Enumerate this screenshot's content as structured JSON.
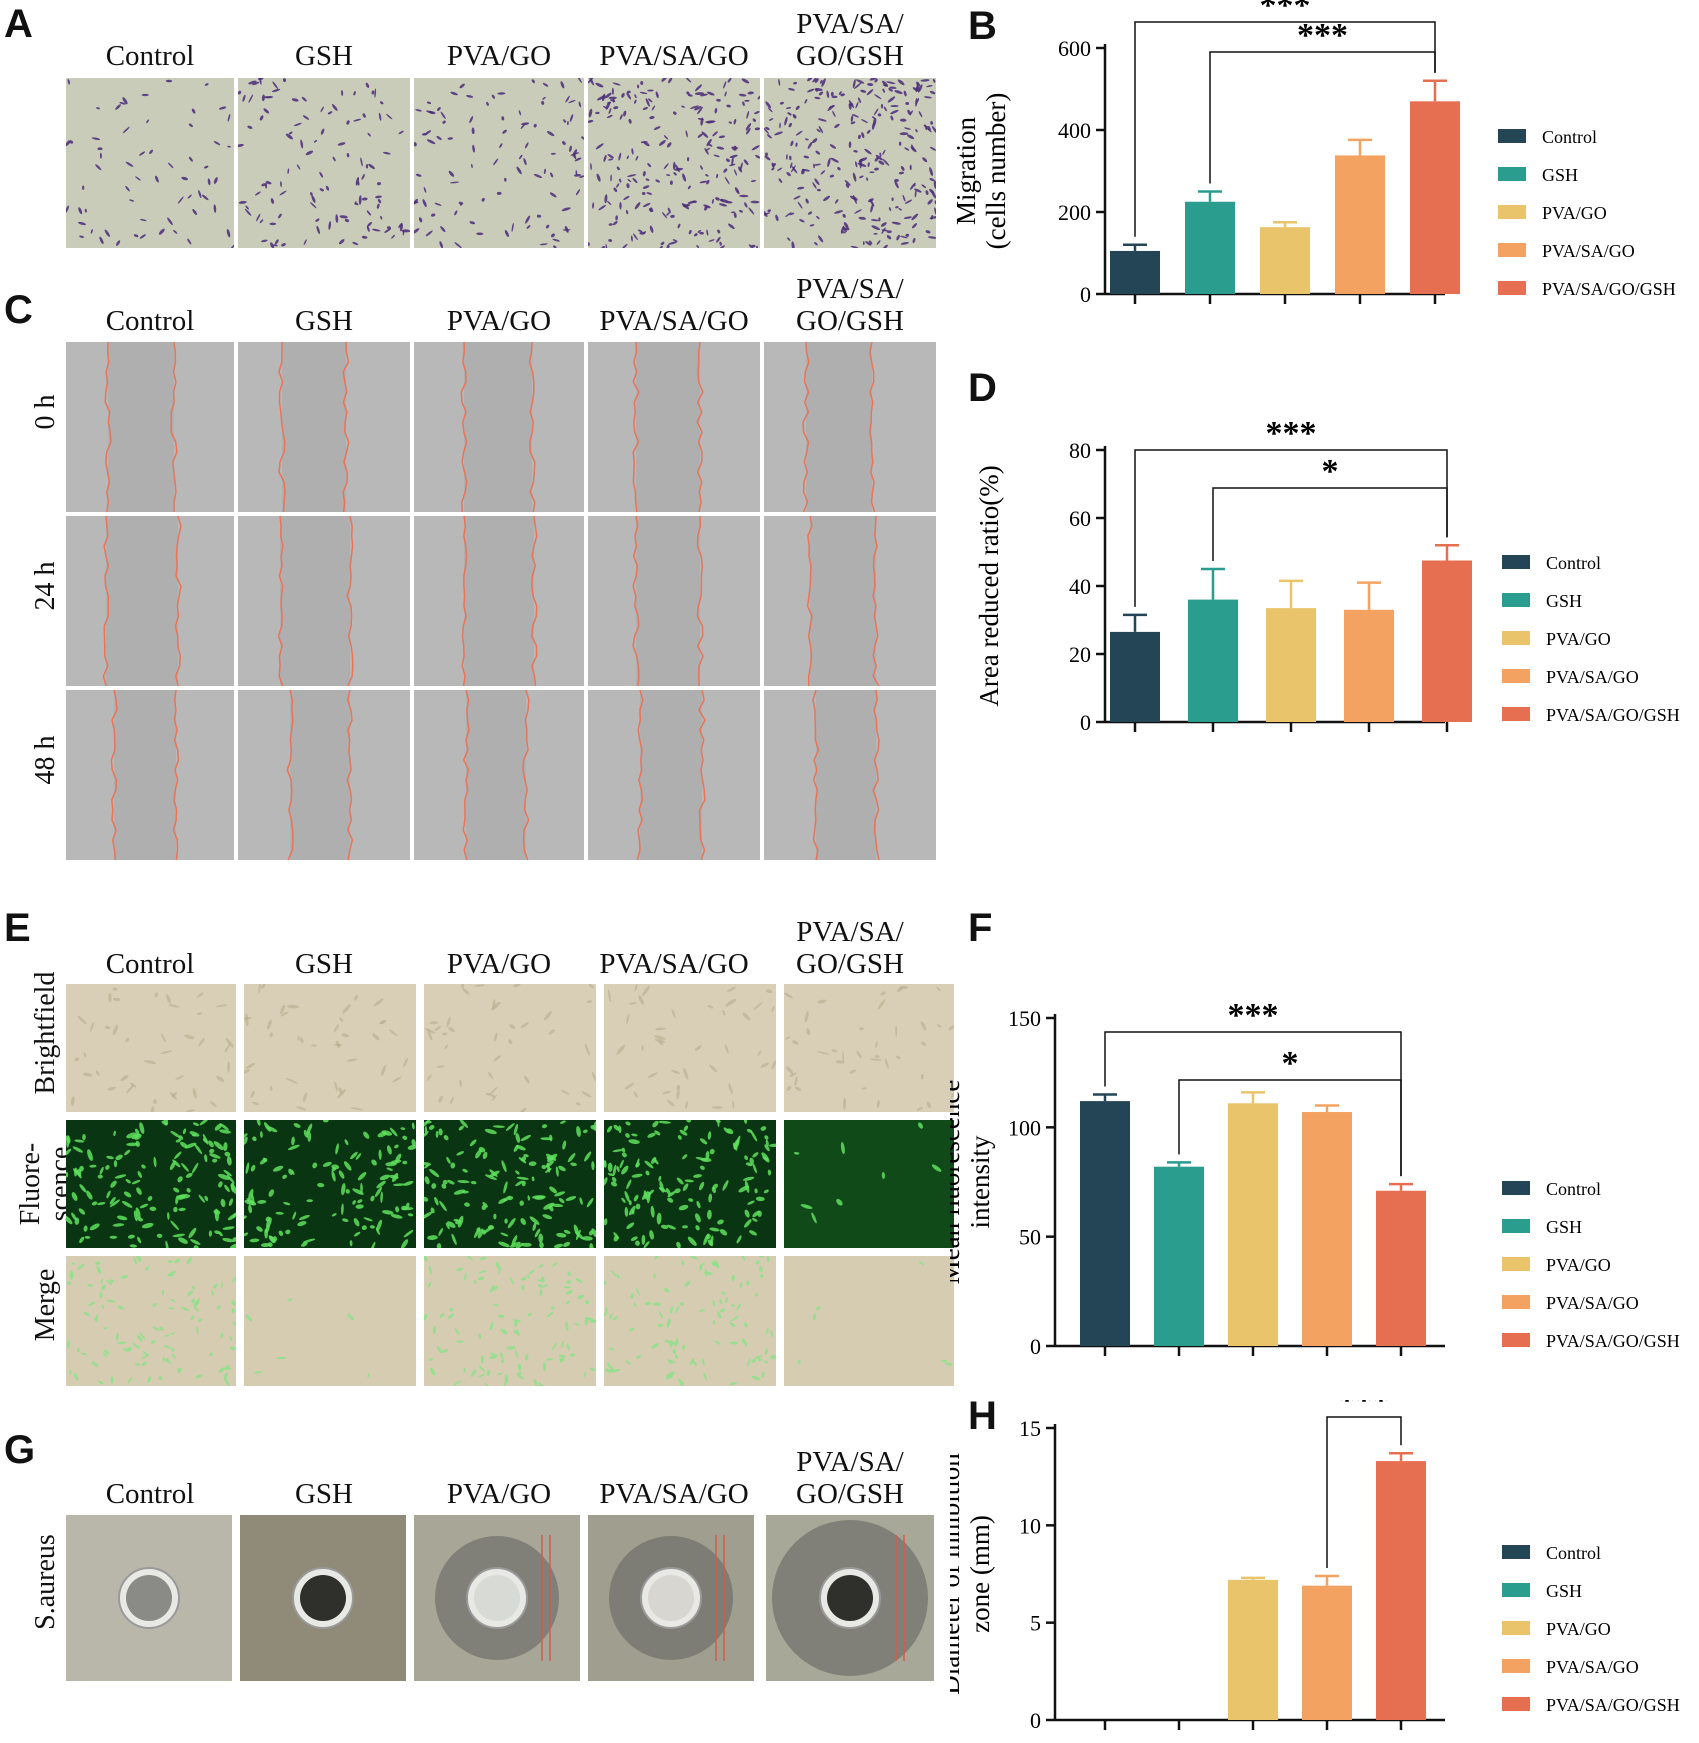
{
  "panel_letters": {
    "A": "A",
    "B": "B",
    "C": "C",
    "D": "D",
    "E": "E",
    "F": "F",
    "G": "G",
    "H": "H"
  },
  "groups": [
    "Control",
    "GSH",
    "PVA/GO",
    "PVA/SA/GO",
    "PVA/SA/\nGO/GSH"
  ],
  "group_colors": [
    "#244556",
    "#2a9d8f",
    "#e9c46a",
    "#f4a261",
    "#e76f51"
  ],
  "scratch_rows": [
    "0 h",
    "24 h",
    "48 h"
  ],
  "fluor_rows": [
    "Brightfield",
    "Fluore-\nscence",
    "Merge"
  ],
  "bacteria_row": "S.aureus",
  "chart_data": [
    {
      "id": "B",
      "type": "bar",
      "categories": [
        "Control",
        "GSH",
        "PVA/GO",
        "PVA/SA/GO",
        "PVA/SA/GO/GSH"
      ],
      "values": [
        105,
        225,
        163,
        338,
        470
      ],
      "errors": [
        15,
        25,
        12,
        38,
        50
      ],
      "ylabel": "Migration\n(cells number)",
      "ylim": [
        0,
        600
      ],
      "yticks": [
        0,
        200,
        400,
        600
      ],
      "significance": [
        {
          "from": 0,
          "to": 4,
          "label": "***"
        },
        {
          "from": 1,
          "to": 4,
          "label": "***"
        }
      ],
      "legend": [
        "Control",
        "GSH",
        "PVA/GO",
        "PVA/SA/GO",
        "PVA/SA/GO/GSH"
      ]
    },
    {
      "id": "D",
      "type": "bar",
      "categories": [
        "Control",
        "GSH",
        "PVA/GO",
        "PVA/SA/GO",
        "PVA/SA/GO/GSH"
      ],
      "values": [
        26.5,
        36,
        33.5,
        33,
        47.5
      ],
      "errors": [
        5,
        9,
        8,
        8,
        4.5
      ],
      "ylabel": "Area reduced ratio(%)",
      "ylim": [
        0,
        80
      ],
      "yticks": [
        0,
        20,
        40,
        60,
        80
      ],
      "significance": [
        {
          "from": 0,
          "to": 4,
          "label": "***"
        },
        {
          "from": 1,
          "to": 4,
          "label": "*"
        }
      ],
      "legend": [
        "Control",
        "GSH",
        "PVA/GO",
        "PVA/SA/GO",
        "PVA/SA/GO/GSH"
      ]
    },
    {
      "id": "F",
      "type": "bar",
      "categories": [
        "Control",
        "GSH",
        "PVA/GO",
        "PVA/SA/GO",
        "PVA/SA/GO/GSH"
      ],
      "values": [
        112,
        82,
        111,
        107,
        71
      ],
      "errors": [
        3,
        2,
        5,
        3,
        3
      ],
      "ylabel": "Mean fluorescence\nintensity",
      "ylim": [
        0,
        150
      ],
      "yticks": [
        0,
        50,
        100,
        150
      ],
      "significance": [
        {
          "from": 0,
          "to": 4,
          "label": "***"
        },
        {
          "from": 1,
          "to": 4,
          "label": "*"
        }
      ],
      "legend": [
        "Control",
        "GSH",
        "PVA/GO",
        "PVA/SA/GO",
        "PVA/SA/GO/GSH"
      ]
    },
    {
      "id": "H",
      "type": "bar",
      "categories": [
        "Control",
        "GSH",
        "PVA/GO",
        "PVA/SA/GO",
        "PVA/SA/GO/GSH"
      ],
      "values": [
        0,
        0,
        7.2,
        6.9,
        13.3
      ],
      "errors": [
        0,
        0,
        0.1,
        0.5,
        0.4
      ],
      "ylabel": "Diameter of inhibition\nzone (mm)",
      "ylim": [
        0,
        15
      ],
      "yticks": [
        0,
        5,
        10,
        15
      ],
      "significance": [
        {
          "from": 3,
          "to": 4,
          "label": "***"
        }
      ],
      "legend": [
        "Control",
        "GSH",
        "PVA/GO",
        "PVA/SA/GO",
        "PVA/SA/GO/GSH"
      ]
    }
  ]
}
